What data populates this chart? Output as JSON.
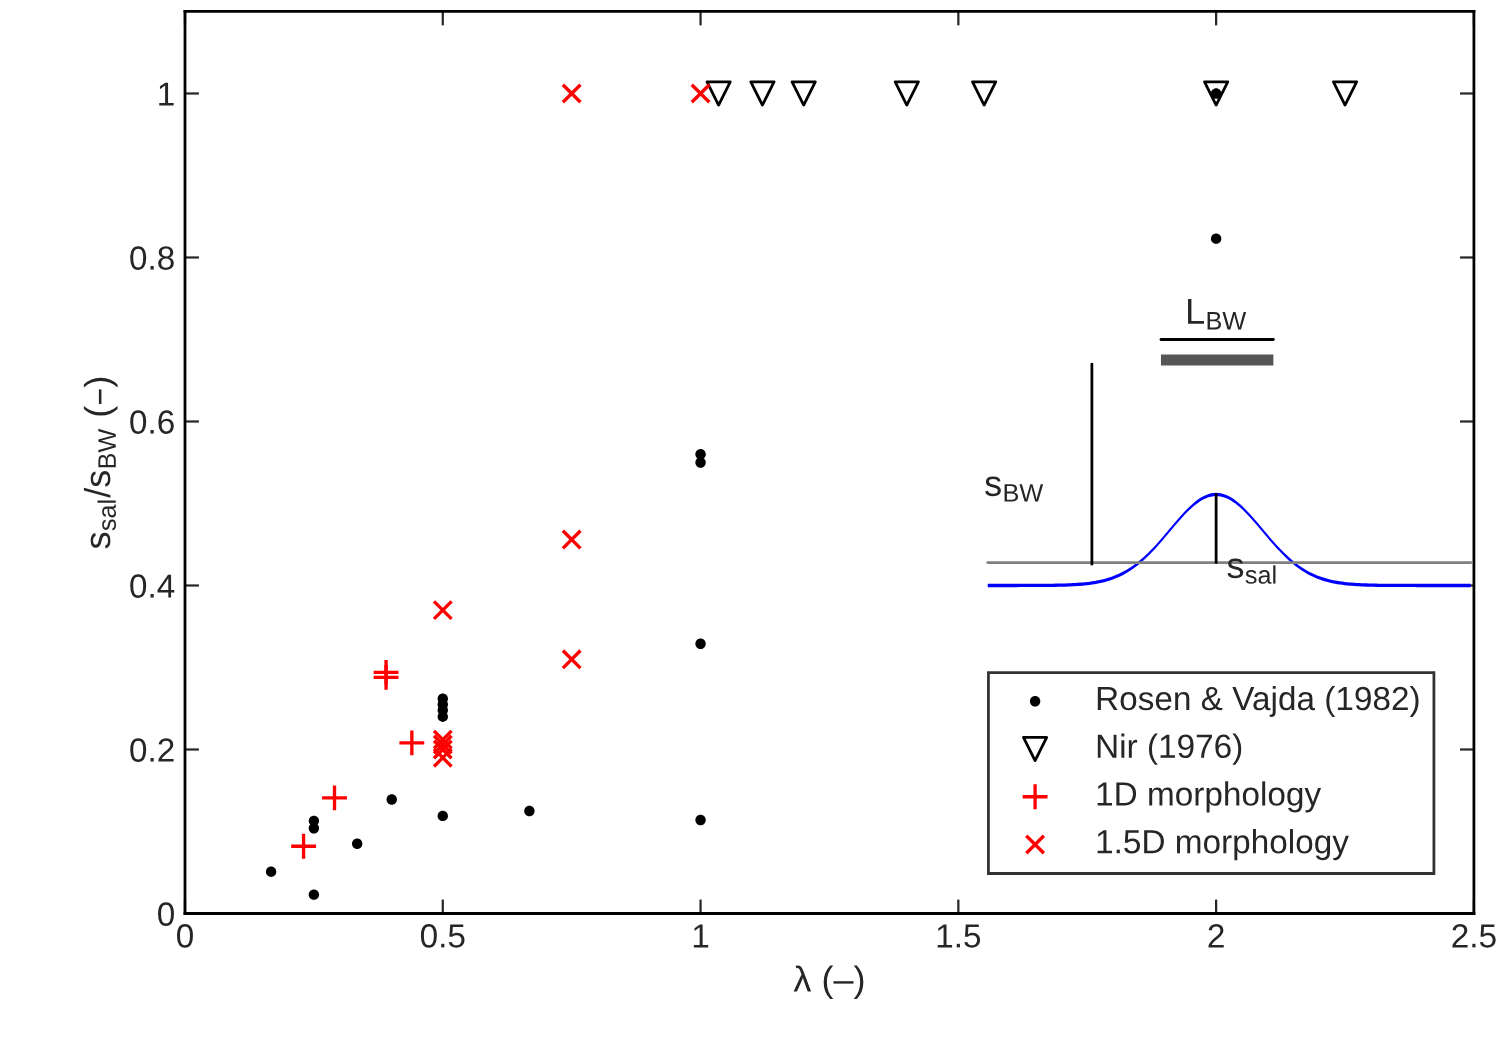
{
  "chart_data": {
    "type": "scatter",
    "xlabel": "λ (–)",
    "ylabel": "s$_{sal}$/s$_{BW}$ (–)",
    "xlim": [
      0,
      2.5
    ],
    "xticks": [
      0,
      0.5,
      1,
      1.5,
      2,
      2.5
    ],
    "ylim": [
      0,
      1.1
    ],
    "yticks": [
      0,
      0.2,
      0.4,
      0.6,
      0.8,
      1
    ],
    "legend": "bottom right",
    "series": [
      {
        "name": "Rosen & Vajda (1982)",
        "color": "#000000",
        "marker": "circle",
        "x": [
          0.167,
          0.25,
          0.25,
          0.25,
          0.334,
          0.401,
          0.5,
          0.5,
          0.5,
          0.5,
          0.5,
          0.668,
          1,
          1,
          1,
          1,
          2,
          2
        ],
        "values": [
          0.051,
          0.023,
          0.104,
          0.113,
          0.085,
          0.139,
          0.119,
          0.24,
          0.248,
          0.255,
          0.262,
          0.125,
          0.114,
          0.329,
          0.55,
          0.56,
          0.823,
          1
        ]
      },
      {
        "name": "Nir (1976)",
        "color": "#000000",
        "marker": "triangle",
        "x": [
          1.035,
          1.12,
          1.2,
          1.4,
          1.55,
          2.0,
          2.25
        ],
        "values": [
          1,
          1,
          1,
          1,
          1,
          1,
          1
        ]
      },
      {
        "name": "1D morphology",
        "color": "#ff0000",
        "marker": "plus",
        "x": [
          0.23,
          0.29,
          0.39,
          0.39,
          0.44
        ],
        "values": [
          0.082,
          0.141,
          0.288,
          0.294,
          0.208
        ]
      },
      {
        "name": "1.5D morphology",
        "color": "#ff0000",
        "marker": "cross",
        "x": [
          0.5,
          0.5,
          0.5,
          0.5,
          0.5,
          0.75,
          0.75,
          0.75,
          1
        ],
        "values": [
          0.19,
          0.2,
          0.206,
          0.212,
          0.37,
          0.31,
          0.456,
          1,
          1
        ]
      }
    ],
    "annotations": [
      "L$_{BW}$",
      "s$_{BW}$",
      "s$_{sal}$"
    ]
  }
}
